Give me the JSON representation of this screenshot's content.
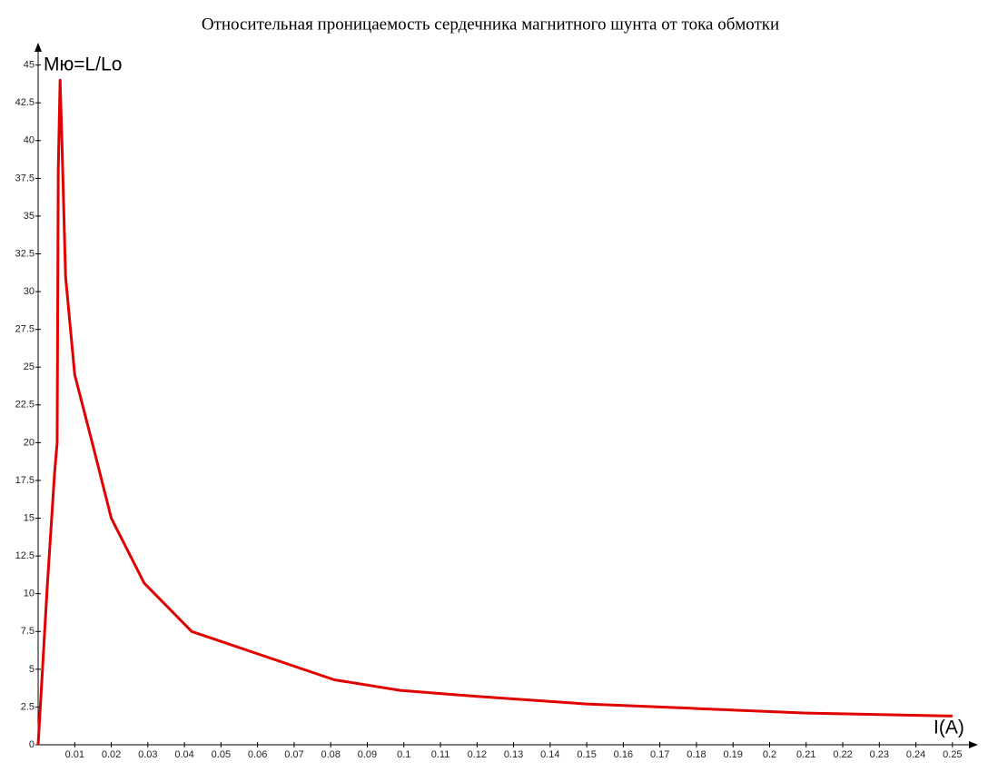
{
  "chart_data": {
    "type": "line",
    "title": "Относительная проницаемость сердечника магнитного шунта от тока обмотки",
    "y_label": "Мю=L/Lo",
    "x_label": "I(A)",
    "xlim": [
      0,
      0.255
    ],
    "ylim": [
      0,
      46
    ],
    "xticks": [
      0.01,
      0.02,
      0.03,
      0.04,
      0.05,
      0.06,
      0.07,
      0.08,
      0.09,
      0.1,
      0.11,
      0.12,
      0.13,
      0.14,
      0.15,
      0.16,
      0.17,
      0.18,
      0.19,
      0.2,
      0.21,
      0.22,
      0.23,
      0.24,
      0.25
    ],
    "yticks": [
      0,
      2.5,
      5,
      7.5,
      10,
      12.5,
      15,
      17.5,
      20,
      22.5,
      25,
      27.5,
      30,
      32.5,
      35,
      37.5,
      40,
      42.5,
      45
    ],
    "series": [
      {
        "color": "#e00000",
        "x": [
          0,
          0.0025,
          0.0045,
          0.0052,
          0.0055,
          0.006,
          0.0065,
          0.0075,
          0.01,
          0.015,
          0.02,
          0.029,
          0.042,
          0.081,
          0.099,
          0.12,
          0.15,
          0.18,
          0.21,
          0.25
        ],
        "values": [
          0,
          10.5,
          18,
          20,
          38,
          44,
          40,
          31,
          24.5,
          19.8,
          15,
          10.7,
          7.5,
          4.3,
          3.6,
          3.2,
          2.7,
          2.4,
          2.1,
          1.9
        ]
      }
    ]
  }
}
